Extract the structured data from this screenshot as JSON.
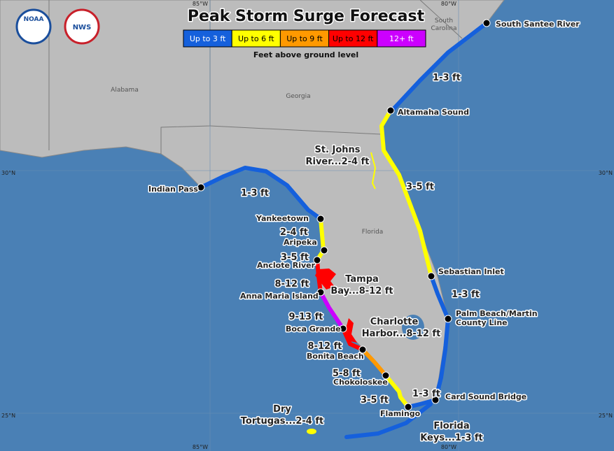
{
  "header": {
    "title": "Peak Storm Surge Forecast",
    "logos": [
      "NOAA",
      "NWS"
    ]
  },
  "legend": {
    "items": [
      {
        "label": "Up to 3 ft",
        "color": "#1560dc"
      },
      {
        "label": "Up to 6 ft",
        "color": "#ffff00"
      },
      {
        "label": "Up to 9 ft",
        "color": "#ff9900"
      },
      {
        "label": "Up to 12 ft",
        "color": "#ff0000"
      },
      {
        "label": "12+ ft",
        "color": "#cc00ff"
      }
    ],
    "note": "Feet above ground level"
  },
  "graticule": {
    "top": [
      "85°W",
      "80°W"
    ],
    "bottom": [
      "85°W",
      "80°W"
    ],
    "left": [
      "30°N",
      "25°N"
    ],
    "right": [
      "30°N",
      "25°N"
    ]
  },
  "regions": [
    [
      "Alabama"
    ],
    [
      "Georgia"
    ],
    [
      "South",
      "Carolina"
    ],
    [
      "Florida"
    ]
  ],
  "locations": [
    [
      "South Santee River"
    ],
    [
      "Altamaha Sound"
    ],
    [
      "Indian Pass"
    ],
    [
      "Yankeetown"
    ],
    [
      "Aripeka"
    ],
    [
      "Anclote River"
    ],
    [
      "Anna Maria Island"
    ],
    [
      "Boca Grande"
    ],
    [
      "Bonita Beach"
    ],
    [
      "Chokoloskee"
    ],
    [
      "Flamingo"
    ],
    [
      "Card Sound Bridge"
    ],
    [
      "Palm Beach/Martin",
      "County Line"
    ],
    [
      "Sebastian Inlet"
    ]
  ],
  "surge_labels": [
    [
      "1-3 ft"
    ],
    [
      "St. Johns",
      "River...2-4 ft"
    ],
    [
      "3-5 ft"
    ],
    [
      "1-3 ft"
    ],
    [
      "2-4 ft"
    ],
    [
      "3-5 ft"
    ],
    [
      "8-12 ft"
    ],
    [
      "Tampa",
      "Bay...8-12 ft"
    ],
    [
      "9-13 ft"
    ],
    [
      "Charlotte",
      "Harbor...8-12 ft"
    ],
    [
      "8-12 ft"
    ],
    [
      "5-8 ft"
    ],
    [
      "1-3 ft"
    ],
    [
      "3-5 ft"
    ],
    [
      "Dry",
      "Tortugas...2-4 ft"
    ],
    [
      "Florida",
      "Keys...1-3 ft"
    ],
    [
      "1-3 ft"
    ]
  ]
}
